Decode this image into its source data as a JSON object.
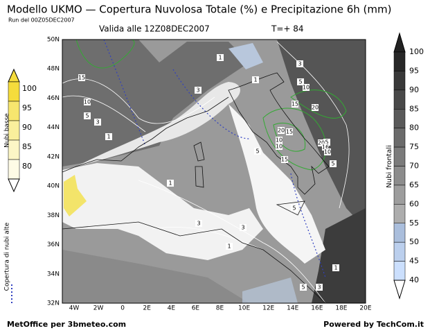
{
  "header": {
    "title": "Modello UKMO — Copertura Nuvolosa Totale (%) e Precipitazione 6h (mm)",
    "run": "Run del 00Z05DEC2007",
    "valid": "Valida alle 12Z08DEC2007",
    "lead": "T=+ 84"
  },
  "map": {
    "lat_labels": [
      "50N",
      "48N",
      "46N",
      "44N",
      "42N",
      "40N",
      "38N",
      "36N",
      "34N",
      "32N"
    ],
    "lon_labels": [
      "4W",
      "2W",
      "0",
      "2E",
      "4E",
      "6E",
      "8E",
      "10E",
      "12E",
      "14E",
      "16E",
      "18E",
      "20E"
    ],
    "contour_labels": [
      "15",
      "10",
      "5",
      "3",
      "1",
      "1",
      "3",
      "1",
      "3",
      "5",
      "10",
      "15",
      "20",
      "20",
      "15",
      "10",
      "5",
      "10",
      "15",
      "5",
      "20",
      "16",
      "10",
      "5",
      "1",
      "3",
      "3",
      "1",
      "5",
      "1",
      "5",
      "3"
    ]
  },
  "left_scale": {
    "label": "Nubi basse",
    "ticks": [
      100,
      95,
      90,
      85,
      80
    ],
    "high_label": "Copertura di nubi alte"
  },
  "right_scale": {
    "label": "Nubi frontali",
    "ticks": [
      100,
      95,
      90,
      85,
      80,
      75,
      70,
      65,
      60,
      55,
      50,
      45,
      40
    ]
  },
  "footer": {
    "left": "MetOffice per 3bmeteo.com",
    "right": "Powered by TechCom.it"
  }
}
